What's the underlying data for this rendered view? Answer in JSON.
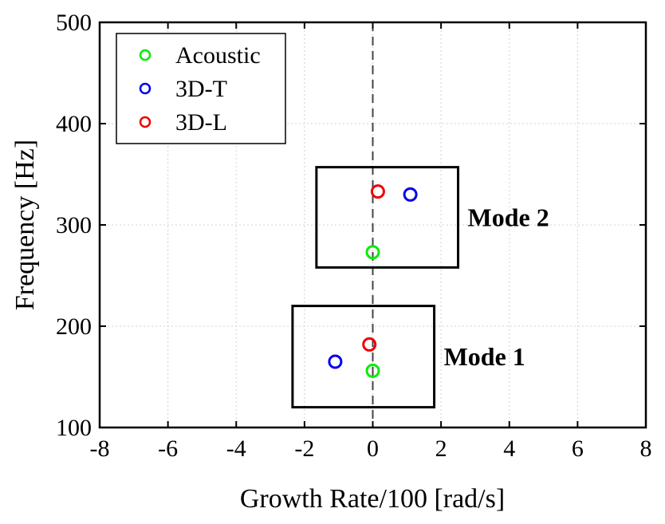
{
  "chart_data": {
    "type": "scatter",
    "title": "",
    "xlabel": "Growth Rate/100 [rad/s]",
    "ylabel": "Frequency [Hz]",
    "xlim": [
      -8,
      8
    ],
    "ylim": [
      100,
      500
    ],
    "xticks": [
      -8,
      -6,
      -4,
      -2,
      0,
      2,
      4,
      6,
      8
    ],
    "yticks": [
      100,
      200,
      300,
      400,
      500
    ],
    "xtick_labels": [
      "-8",
      "-6",
      "-4",
      "-2",
      "0",
      "2",
      "4",
      "6",
      "8"
    ],
    "ytick_labels": [
      "100",
      "200",
      "300",
      "400",
      "500"
    ],
    "grid": true,
    "legend_position": "top-left",
    "reference_line": {
      "x": 0,
      "style": "dashed"
    },
    "series": [
      {
        "name": "Acoustic",
        "color": "#00ee00",
        "points": [
          {
            "x": 0.0,
            "y": 156
          },
          {
            "x": 0.0,
            "y": 273
          }
        ]
      },
      {
        "name": "3D-T",
        "color": "#0000ee",
        "points": [
          {
            "x": -1.1,
            "y": 165
          },
          {
            "x": 1.1,
            "y": 330
          }
        ]
      },
      {
        "name": "3D-L",
        "color": "#ee0000",
        "points": [
          {
            "x": -0.1,
            "y": 182
          },
          {
            "x": 0.15,
            "y": 333
          }
        ]
      }
    ],
    "annotations": [
      {
        "label": "Mode 1",
        "box_x": [
          -2.35,
          1.8
        ],
        "box_y": [
          120,
          220
        ]
      },
      {
        "label": "Mode 2",
        "box_x": [
          -1.65,
          2.5
        ],
        "box_y": [
          258,
          357
        ]
      }
    ]
  }
}
